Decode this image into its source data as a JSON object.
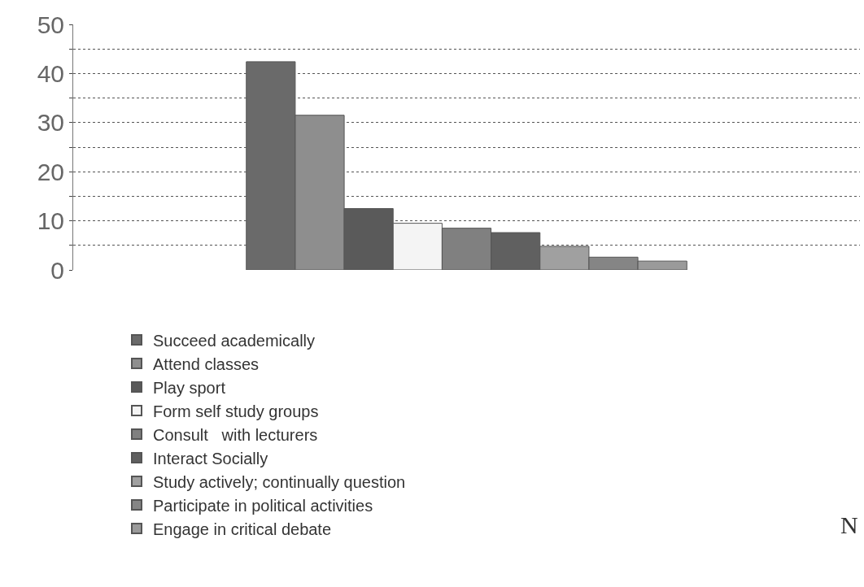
{
  "chart_data": {
    "type": "bar",
    "categories": [
      null
    ],
    "series": [
      {
        "name": "Succeed academically",
        "color": "#6a6a6a",
        "values": [
          42.4
        ]
      },
      {
        "name": "Attend classes",
        "color": "#8e8e8e",
        "values": [
          31.5
        ]
      },
      {
        "name": "Play sport",
        "color": "#5a5a5a",
        "values": [
          12.5
        ]
      },
      {
        "name": "Form self study groups",
        "color": "#f4f4f4",
        "values": [
          9.5
        ]
      },
      {
        "name": "Consult   with lecturers",
        "color": "#808080",
        "values": [
          8.5
        ]
      },
      {
        "name": "Interact Socially",
        "color": "#606060",
        "values": [
          7.6
        ]
      },
      {
        "name": "Study actively; continually question",
        "color": "#a0a0a0",
        "values": [
          4.8
        ]
      },
      {
        "name": "Participate in political activities",
        "color": "#858585",
        "values": [
          2.6
        ]
      },
      {
        "name": "Engage in critical debate",
        "color": "#9a9a9a",
        "values": [
          1.8
        ]
      }
    ],
    "ylim": [
      0,
      50
    ],
    "yticks": [
      0,
      {
        "value": 5,
        "label": null
      },
      10,
      {
        "value": 15,
        "label": null
      },
      20,
      {
        "value": 25,
        "label": null
      },
      30,
      {
        "value": 35,
        "label": null
      },
      40,
      {
        "value": 45,
        "label": null
      },
      50
    ],
    "grid": "y",
    "legend": "bottom",
    "annotations": [
      "N"
    ]
  }
}
